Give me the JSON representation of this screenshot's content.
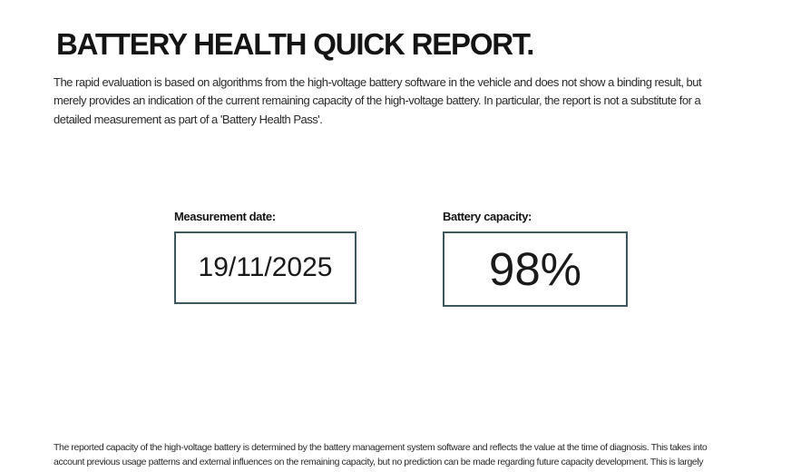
{
  "colors": {
    "box_border": "#3e565e",
    "title_text": "#141414",
    "body_text": "#2b2b2b"
  },
  "report": {
    "title": "BATTERY HEALTH QUICK REPORT.",
    "intro_lines": [
      "The rapid evaluation is based on algorithms from the high-voltage battery software in the vehicle and does not show a binding result, but",
      "merely provides an indication of the current remaining capacity of the high-voltage battery. In particular, the report is not a substitute for a",
      "detailed measurement as part of a 'Battery Health Pass'."
    ],
    "measurement_date": {
      "label": "Measurement date:",
      "value": "19/11/2025"
    },
    "battery_capacity": {
      "label": "Battery capacity:",
      "value": "98%"
    },
    "disclaimer_lines": [
      "The reported capacity of the high-voltage battery is determined by the battery management system software and reflects the value at the time of diagnosis. This takes into",
      "account previous usage patterns and external influences on the remaining capacity, but no prediction can be made regarding future capacity development. This is largely"
    ]
  }
}
